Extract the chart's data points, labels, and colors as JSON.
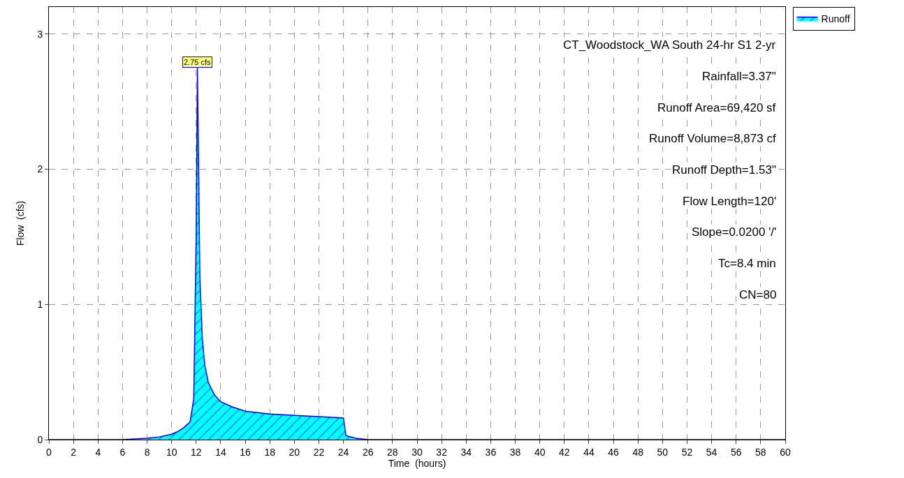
{
  "chart_data": {
    "type": "area",
    "xlabel": "Time  (hours)",
    "ylabel": "Flow  (cfs)",
    "x": [
      0,
      6,
      8,
      9,
      10,
      10.5,
      11,
      11.5,
      11.8,
      12.0,
      12.1,
      12.2,
      12.3,
      12.5,
      12.7,
      13,
      13.5,
      14,
      15,
      16,
      18,
      20,
      22,
      24,
      24.2,
      25,
      26,
      30,
      40,
      50,
      60
    ],
    "series": [
      {
        "name": "Runoff",
        "color": "#00ffff",
        "values": [
          0,
          0,
          0.01,
          0.02,
          0.04,
          0.06,
          0.09,
          0.13,
          0.3,
          1.5,
          2.75,
          2.0,
          1.2,
          0.75,
          0.55,
          0.42,
          0.33,
          0.28,
          0.24,
          0.21,
          0.19,
          0.18,
          0.17,
          0.16,
          0.03,
          0.01,
          0,
          0,
          0,
          0,
          0
        ]
      }
    ],
    "annotations": [
      {
        "text": "2.75 cfs",
        "x": 12.1,
        "y": 2.75
      },
      "CT_Woodstock_WA South 24-hr S1 2-yr",
      "Rainfall=3.37\"",
      "Runoff Area=69,420 sf",
      "Runoff Volume=8,873 cf",
      "Runoff Depth=1.53\"",
      "Flow Length=120'",
      "Slope=0.0200 '/'",
      "Tc=8.4 min",
      "CN=80"
    ],
    "xlim": [
      0,
      60
    ],
    "xticks": [
      0,
      2,
      4,
      6,
      8,
      10,
      12,
      14,
      16,
      18,
      20,
      22,
      24,
      26,
      28,
      30,
      32,
      34,
      36,
      38,
      40,
      42,
      44,
      46,
      48,
      50,
      52,
      54,
      56,
      58,
      60
    ],
    "ylim": [
      0,
      3.2
    ],
    "yticks": [
      0,
      1,
      2,
      3
    ],
    "grid": true,
    "legend": "top right"
  }
}
